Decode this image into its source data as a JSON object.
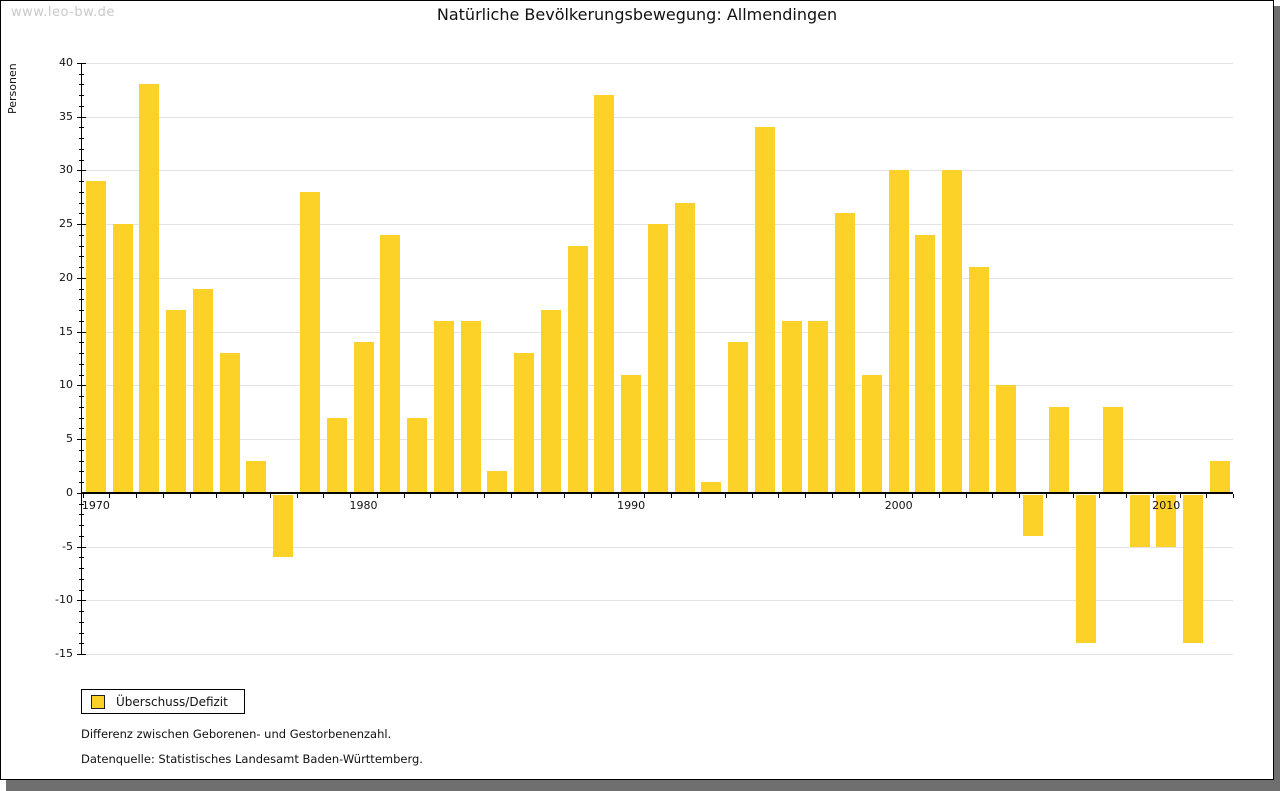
{
  "watermark": "www.leo-bw.de",
  "title": "Natürliche Bevölkerungsbewegung: Allmendingen",
  "legend": {
    "label": "Überschuss/Defizit"
  },
  "footnotes": {
    "line1": "Differenz zwischen Geborenen- und Gestorbenenzahl.",
    "line2": "Datenquelle: Statistisches Landesamt Baden-Württemberg."
  },
  "colors": {
    "bar": "#fcd229",
    "grid": "#e3e3e3",
    "axis": "#000000",
    "watermark": "#c9c9c9",
    "frame_shadow": "#6f6f6f"
  },
  "chart_data": {
    "type": "bar",
    "title": "Natürliche Bevölkerungsbewegung: Allmendingen",
    "xlabel": "",
    "ylabel": "Personen",
    "series_name": "Überschuss/Defizit",
    "x": [
      1970,
      1971,
      1972,
      1973,
      1974,
      1975,
      1976,
      1977,
      1978,
      1979,
      1980,
      1981,
      1982,
      1983,
      1984,
      1985,
      1986,
      1987,
      1988,
      1989,
      1990,
      1991,
      1992,
      1993,
      1994,
      1995,
      1996,
      1997,
      1998,
      1999,
      2000,
      2001,
      2002,
      2003,
      2004,
      2005,
      2006,
      2007,
      2008,
      2009,
      2010,
      2011,
      2012
    ],
    "values": [
      29,
      25,
      38,
      17,
      19,
      13,
      3,
      -6,
      28,
      7,
      14,
      24,
      7,
      16,
      16,
      2,
      13,
      17,
      23,
      37,
      11,
      25,
      27,
      1,
      14,
      34,
      16,
      16,
      26,
      11,
      30,
      24,
      30,
      21,
      10,
      -4,
      8,
      -14,
      8,
      -5,
      -5,
      -14,
      3
    ],
    "ylim": [
      -15,
      40
    ],
    "ytick_step": 5,
    "ytick_minor_step": 1,
    "xticks": [
      1970,
      1980,
      1990,
      2000,
      2010
    ],
    "grid": true,
    "legend_position": "bottom-left"
  }
}
